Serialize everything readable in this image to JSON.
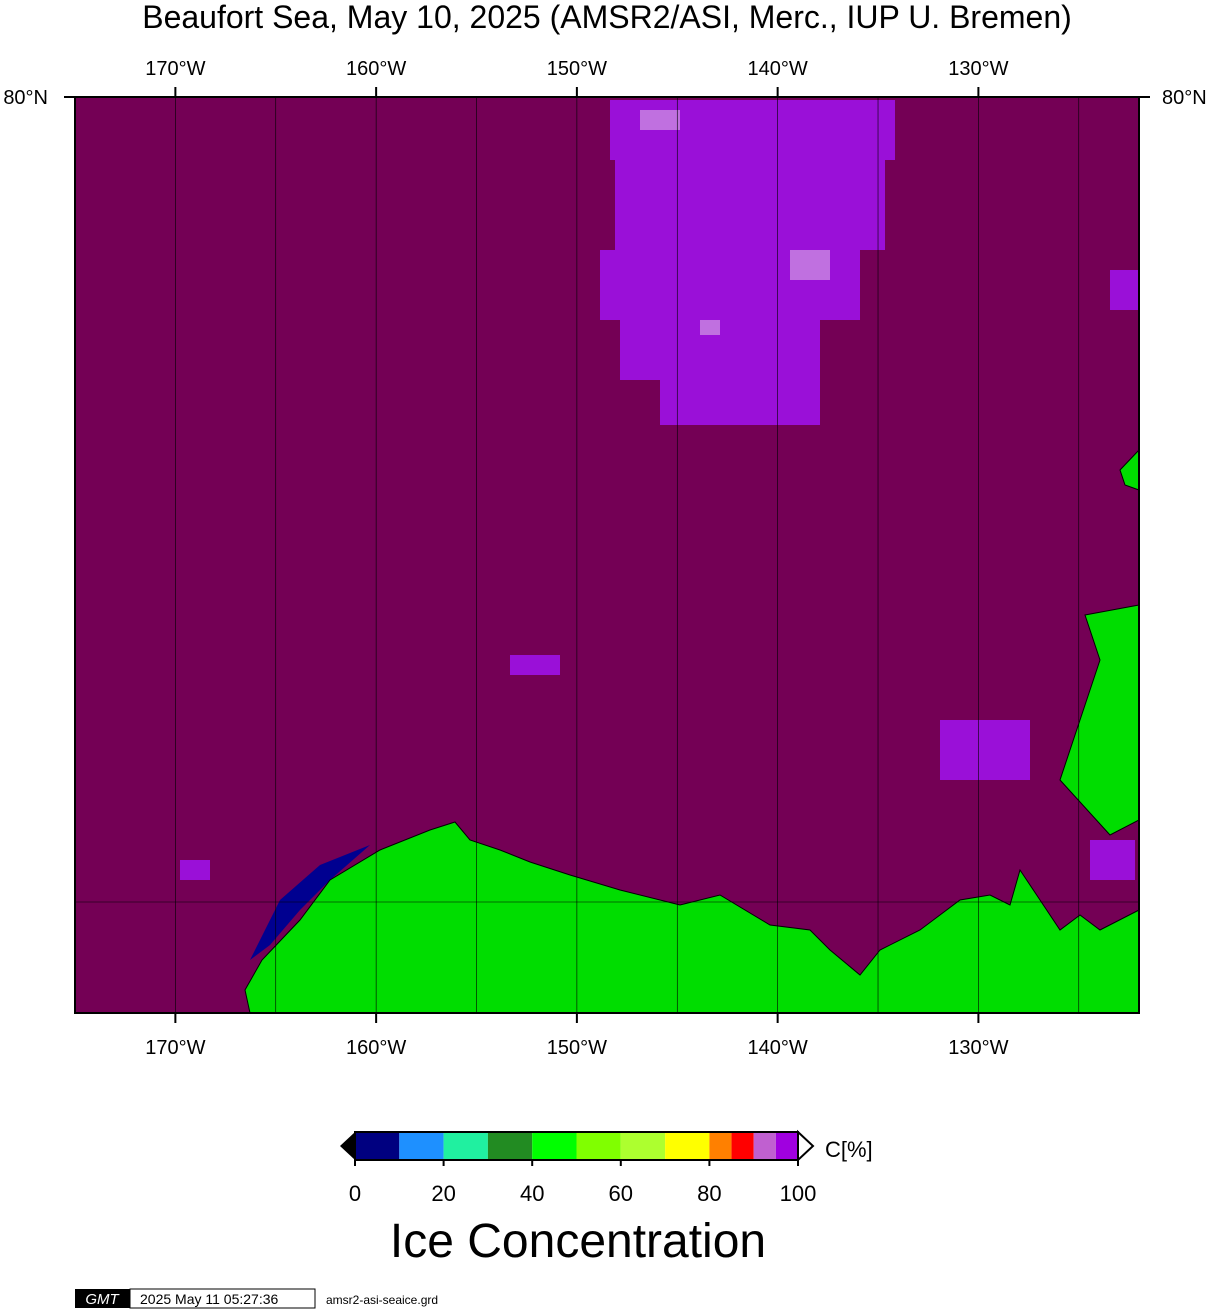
{
  "title": "Beaufort Sea, May 10, 2025 (AMSR2/ASI, Merc., IUP U. Bremen)",
  "map": {
    "xlim": [
      -175,
      -122
    ],
    "xticks": [
      {
        "value": -170,
        "label": "170°W"
      },
      {
        "value": -160,
        "label": "160°W"
      },
      {
        "value": -150,
        "label": "150°W"
      },
      {
        "value": -140,
        "label": "140°W"
      },
      {
        "value": -130,
        "label": "130°W"
      }
    ],
    "minor_gridlines": [
      -165,
      -155,
      -145,
      -135,
      -125
    ],
    "lat_label": "80°N"
  },
  "colorbar": {
    "bounds": [
      0,
      10,
      20,
      30,
      40,
      50,
      60,
      70,
      80,
      85,
      90,
      95,
      100
    ],
    "colors": [
      "#000080",
      "#1e90ff",
      "#20f0a0",
      "#228b22",
      "#00ff00",
      "#80ff00",
      "#adff2f",
      "#ffff00",
      "#ff8000",
      "#ff0000",
      "#c060d0",
      "#a000e0"
    ],
    "ticks": [
      0,
      20,
      40,
      60,
      80,
      100
    ],
    "unit": "C[%]",
    "label": "Ice Concentration"
  },
  "footer": {
    "logo": "GMT",
    "timestamp": "2025 May 11 05:27:36",
    "file": "amsr2-asi-seaice.grd"
  }
}
